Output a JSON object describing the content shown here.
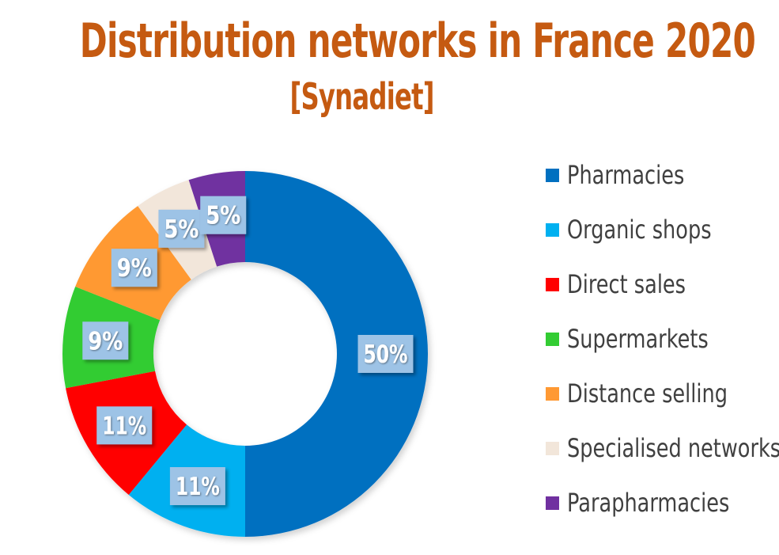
{
  "chart_data": {
    "type": "pie",
    "variant": "donut",
    "title": "Distribution networks in France 2020",
    "subtitle": "[Synadiet]",
    "legend_position": "right",
    "slices": [
      {
        "name": "Pharmacies",
        "value": 50,
        "label": "50%",
        "color": "#0070C0"
      },
      {
        "name": "Organic shops",
        "value": 11,
        "label": "11%",
        "color": "#00B0F0"
      },
      {
        "name": "Direct sales",
        "value": 11,
        "label": "11%",
        "color": "#FF0000"
      },
      {
        "name": "Supermarkets",
        "value": 9,
        "label": "9%",
        "color": "#33CC33"
      },
      {
        "name": "Distance selling",
        "value": 9,
        "label": "9%",
        "color": "#FF9933"
      },
      {
        "name": "Specialised networks",
        "value": 5,
        "label": "5%",
        "color": "#F2E6DA"
      },
      {
        "name": "Parapharmacies",
        "value": 5,
        "label": "5%",
        "color": "#7030A0"
      }
    ]
  },
  "colors": {
    "title": "#C55A11",
    "data_label_bg": "#9DC3E6",
    "data_label_text": "#ffffff"
  }
}
